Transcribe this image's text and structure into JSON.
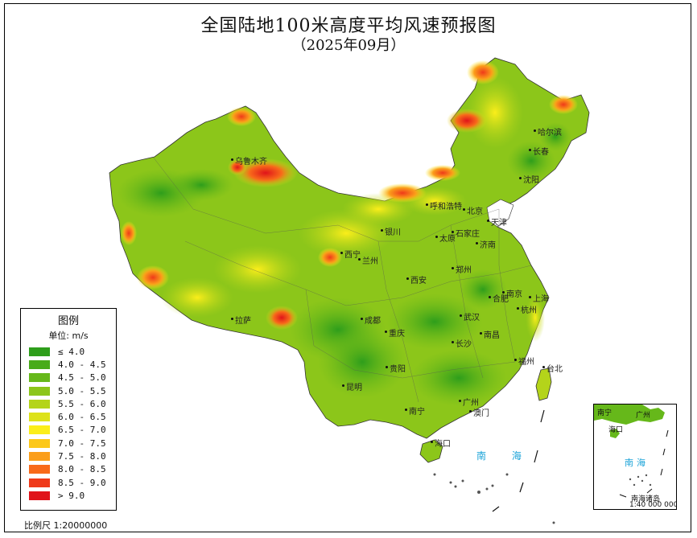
{
  "title": "全国陆地100米高度平均风速预报图",
  "subtitle": "（2025年09月）",
  "legend": {
    "title": "图例",
    "unit": "单位: m/s",
    "items": [
      {
        "label": "≤ 4.0",
        "color": "#2e9e1b"
      },
      {
        "label": "4.0 - 4.5",
        "color": "#48ab1a"
      },
      {
        "label": "4.5 - 5.0",
        "color": "#66b81a"
      },
      {
        "label": "5.0 - 5.5",
        "color": "#8cc61a"
      },
      {
        "label": "5.5 - 6.0",
        "color": "#b4d41a"
      },
      {
        "label": "6.0 - 6.5",
        "color": "#dde21a"
      },
      {
        "label": "6.5 - 7.0",
        "color": "#fbee1a"
      },
      {
        "label": "7.0 - 7.5",
        "color": "#fcc81a"
      },
      {
        "label": "7.5 - 8.0",
        "color": "#fb9e1a"
      },
      {
        "label": "8.0 - 8.5",
        "color": "#f86a1a"
      },
      {
        "label": "8.5 - 9.0",
        "color": "#ef3a1a"
      },
      {
        "label": "> 9.0",
        "color": "#e0141a"
      }
    ]
  },
  "cities": [
    {
      "name": "乌鲁木齐"
    },
    {
      "name": "哈尔滨"
    },
    {
      "name": "长春"
    },
    {
      "name": "沈阳"
    },
    {
      "name": "呼和浩特"
    },
    {
      "name": "北京"
    },
    {
      "name": "天津"
    },
    {
      "name": "银川"
    },
    {
      "name": "太原"
    },
    {
      "name": "石家庄"
    },
    {
      "name": "济南"
    },
    {
      "name": "西宁"
    },
    {
      "name": "兰州"
    },
    {
      "name": "郑州"
    },
    {
      "name": "西安"
    },
    {
      "name": "南京"
    },
    {
      "name": "合肥"
    },
    {
      "name": "上海"
    },
    {
      "name": "杭州"
    },
    {
      "name": "成都"
    },
    {
      "name": "武汉"
    },
    {
      "name": "拉萨"
    },
    {
      "name": "重庆"
    },
    {
      "name": "南昌"
    },
    {
      "name": "长沙"
    },
    {
      "name": "福州"
    },
    {
      "name": "台北"
    },
    {
      "name": "贵阳"
    },
    {
      "name": "昆明"
    },
    {
      "name": "南宁"
    },
    {
      "name": "广州"
    },
    {
      "name": "澳门"
    },
    {
      "name": "海口"
    }
  ],
  "sea_label": "南 海",
  "inset": {
    "sea_label": "南海",
    "islands_label": "南海诸岛",
    "scale_label": "1:40 000 000",
    "top_labels": [
      "南宁",
      "广州"
    ],
    "city_label": "海口"
  },
  "scale": "比例尺 1:20000000"
}
